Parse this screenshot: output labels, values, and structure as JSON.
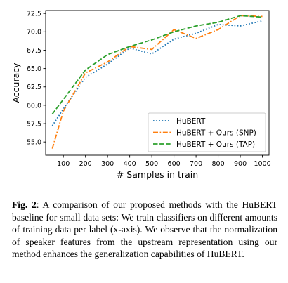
{
  "chart_data": {
    "type": "line",
    "xlabel": "# Samples in train",
    "ylabel": "Accuracy",
    "x": [
      50,
      100,
      200,
      300,
      400,
      500,
      600,
      700,
      800,
      900,
      1000
    ],
    "xticks": [
      100,
      200,
      300,
      400,
      500,
      600,
      700,
      800,
      900,
      1000
    ],
    "yticks": [
      55.0,
      57.5,
      60.0,
      62.5,
      65.0,
      67.5,
      70.0,
      72.5
    ],
    "xlim": [
      20,
      1030
    ],
    "ylim": [
      53.2,
      72.9
    ],
    "grid": false,
    "legend_position": "lower-right",
    "series": [
      {
        "name": "HuBERT",
        "color": "#1f77b4",
        "dash": "dotted",
        "values": [
          57.2,
          59.5,
          63.8,
          65.6,
          67.8,
          67.0,
          69.0,
          69.8,
          71.0,
          70.8,
          71.5
        ]
      },
      {
        "name": "HuBERT + Ours (SNP)",
        "color": "#ff7f0e",
        "dash": "dashdot",
        "values": [
          54.1,
          59.2,
          64.4,
          65.9,
          68.0,
          67.6,
          70.3,
          69.1,
          70.3,
          72.2,
          72.1
        ]
      },
      {
        "name": "HuBERT + Ours (TAP)",
        "color": "#2ca02c",
        "dash": "dashed",
        "values": [
          58.8,
          60.8,
          64.8,
          66.9,
          68.0,
          68.9,
          70.0,
          70.8,
          71.3,
          72.2,
          72.0
        ]
      }
    ]
  },
  "caption": {
    "label": "Fig. 2",
    "text": ": A comparison of our proposed methods with the HuBERT baseline for small data sets: We train classifiers on different amounts of training data per label (x-axis). We observe that the normalization of speaker features from the upstream representation using our method enhances the generalization capabilities of HuBERT."
  }
}
